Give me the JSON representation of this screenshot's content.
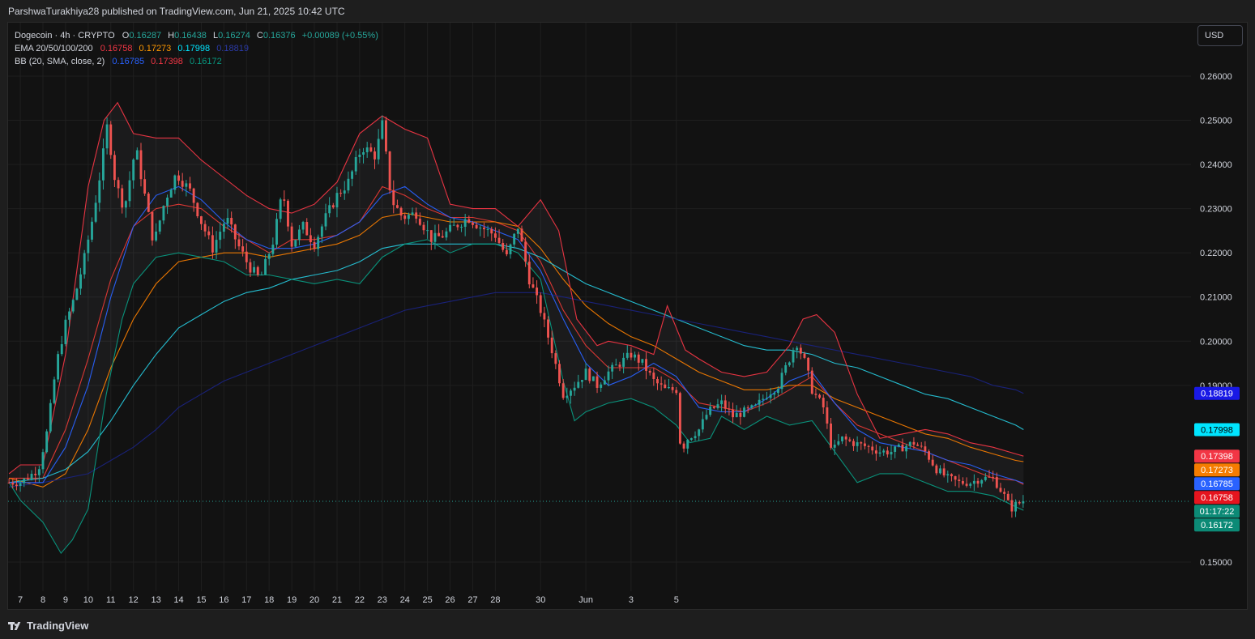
{
  "header": {
    "publish_line": "ParshwaTurakhiya28 published on TradingView.com, Jun 21, 2025 10:42 UTC"
  },
  "footer": {
    "logo_text": "TradingView"
  },
  "toolbar": {
    "currency_button": "USD"
  },
  "legend": {
    "symbol": "Dogecoin · 4h · CRYPTO",
    "ohlc": [
      {
        "key": "O",
        "value": "0.16287"
      },
      {
        "key": "H",
        "value": "0.16438"
      },
      {
        "key": "L",
        "value": "0.16274"
      },
      {
        "key": "C",
        "value": "0.16376"
      }
    ],
    "change": "+0.00089 (+0.55%)",
    "ema_label": "EMA 20/50/100/200",
    "ema_values": [
      "0.16758",
      "0.17273",
      "0.17998",
      "0.18819"
    ],
    "bb_label": "BB (20, SMA, close, 2)",
    "bb_values": [
      "0.16785",
      "0.17398",
      "0.16172"
    ]
  },
  "colors": {
    "background": "#121212",
    "up": "#26a69a",
    "down": "#ef5350",
    "ema20": "#e53935",
    "ema50": "#f57c00",
    "ema100": "#26c6da",
    "ema200": "#1a237e",
    "bb_basis": "#2962ff",
    "bb_upper": "#f23645",
    "bb_lower": "#089981"
  },
  "price_badges": [
    {
      "text": "0.18819",
      "value": 0.18819,
      "color": "#1919e6",
      "text_color": "#ffffff"
    },
    {
      "text": "0.17998",
      "value": 0.17998,
      "color": "#00e5ff",
      "text_color": "#000000"
    },
    {
      "text": "0.17398",
      "value": 0.17398,
      "color": "#f23645",
      "text_color": "#ffffff"
    },
    {
      "text": "0.17273",
      "value": 0.17273,
      "color": "#f57c00",
      "text_color": "#ffffff"
    },
    {
      "text": "0.16785",
      "value": 0.16785,
      "color": "#2962ff",
      "text_color": "#ffffff"
    },
    {
      "text": "0.16758",
      "value": 0.16758,
      "color": "#e6141e",
      "text_color": "#ffffff"
    },
    {
      "text": "01:17:22",
      "value": 0.16376,
      "color": "#0c8a76",
      "text_color": "#ffffff"
    },
    {
      "text": "0.16172",
      "value": 0.16172,
      "color": "#0c8a76",
      "text_color": "#ffffff"
    }
  ],
  "chart_data": {
    "type": "candlestick",
    "symbol": "Dogecoin",
    "interval": "4h",
    "currency": "USD",
    "ylim": [
      0.145,
      0.262
    ],
    "y_ticks": [
      "0.15000",
      "0.19000",
      "0.20000",
      "0.21000",
      "0.22000",
      "0.23000",
      "0.24000",
      "0.25000",
      "0.26000"
    ],
    "x_ticks": [
      "8",
      "10",
      "12",
      "14",
      "16",
      "18",
      "20",
      "22",
      "24",
      "26",
      "28",
      "30",
      "Jun",
      "3",
      "5",
      "7",
      "9",
      "11",
      "13",
      "15",
      "17",
      "19",
      "21",
      "23",
      "25",
      "27"
    ],
    "x_range_days": [
      6.5,
      27.3
    ],
    "grid": true,
    "last_close": 0.16376,
    "price_anchors": [
      {
        "day": 7.0,
        "price": 0.168
      },
      {
        "day": 7.8,
        "price": 0.171
      },
      {
        "day": 8.2,
        "price": 0.18
      },
      {
        "day": 8.6,
        "price": 0.195
      },
      {
        "day": 9.0,
        "price": 0.204
      },
      {
        "day": 9.4,
        "price": 0.21
      },
      {
        "day": 9.8,
        "price": 0.218
      },
      {
        "day": 10.2,
        "price": 0.228
      },
      {
        "day": 10.6,
        "price": 0.24
      },
      {
        "day": 10.85,
        "price": 0.249
      },
      {
        "day": 11.2,
        "price": 0.236
      },
      {
        "day": 11.6,
        "price": 0.23
      },
      {
        "day": 12.1,
        "price": 0.244
      },
      {
        "day": 12.5,
        "price": 0.233
      },
      {
        "day": 12.9,
        "price": 0.222
      },
      {
        "day": 13.4,
        "price": 0.232
      },
      {
        "day": 13.9,
        "price": 0.238
      },
      {
        "day": 14.5,
        "price": 0.234
      },
      {
        "day": 15.0,
        "price": 0.227
      },
      {
        "day": 15.5,
        "price": 0.221
      },
      {
        "day": 16.1,
        "price": 0.228
      },
      {
        "day": 16.6,
        "price": 0.222
      },
      {
        "day": 17.1,
        "price": 0.217
      },
      {
        "day": 17.6,
        "price": 0.214
      },
      {
        "day": 18.2,
        "price": 0.223
      },
      {
        "day": 18.6,
        "price": 0.234
      },
      {
        "day": 19.0,
        "price": 0.222
      },
      {
        "day": 19.5,
        "price": 0.226
      },
      {
        "day": 20.0,
        "price": 0.222
      },
      {
        "day": 20.5,
        "price": 0.228
      },
      {
        "day": 21.0,
        "price": 0.233
      },
      {
        "day": 21.5,
        "price": 0.236
      },
      {
        "day": 22.1,
        "price": 0.244
      },
      {
        "day": 22.7,
        "price": 0.242
      },
      {
        "day": 23.0,
        "price": 0.249
      },
      {
        "day": 23.4,
        "price": 0.232
      },
      {
        "day": 23.9,
        "price": 0.228
      },
      {
        "day": 24.5,
        "price": 0.229
      },
      {
        "day": 25.2,
        "price": 0.223
      },
      {
        "day": 25.7,
        "price": 0.224
      },
      {
        "day": 26.2,
        "price": 0.226
      },
      {
        "day": 26.8,
        "price": 0.228
      },
      {
        "day": 27.3,
        "price": 0.226
      },
      {
        "day": 28.0,
        "price": 0.224
      },
      {
        "day": 28.5,
        "price": 0.219
      },
      {
        "day": 29.0,
        "price": 0.226
      },
      {
        "day": 29.5,
        "price": 0.214
      },
      {
        "day": 30.0,
        "price": 0.207
      },
      {
        "day": 30.5,
        "price": 0.198
      },
      {
        "day": 31.0,
        "price": 0.188
      },
      {
        "day": 31.5,
        "price": 0.19
      },
      {
        "day": 32.0,
        "price": 0.193
      },
      {
        "day": 32.5,
        "price": 0.19
      },
      {
        "day": 33.0,
        "price": 0.193
      },
      {
        "day": 33.5,
        "price": 0.195
      },
      {
        "day": 34.0,
        "price": 0.197
      },
      {
        "day": 34.5,
        "price": 0.195
      },
      {
        "day": 35.0,
        "price": 0.191
      },
      {
        "day": 35.5,
        "price": 0.189
      },
      {
        "day": 36.0,
        "price": 0.189
      },
      {
        "day": 36.2,
        "price": 0.175
      },
      {
        "day": 36.5,
        "price": 0.178
      },
      {
        "day": 37.0,
        "price": 0.18
      },
      {
        "day": 37.4,
        "price": 0.184
      },
      {
        "day": 38.0,
        "price": 0.186
      },
      {
        "day": 38.5,
        "price": 0.183
      },
      {
        "day": 39.0,
        "price": 0.184
      },
      {
        "day": 39.5,
        "price": 0.185
      },
      {
        "day": 40.0,
        "price": 0.188
      },
      {
        "day": 40.5,
        "price": 0.19
      },
      {
        "day": 41.0,
        "price": 0.196
      },
      {
        "day": 41.3,
        "price": 0.2
      },
      {
        "day": 41.7,
        "price": 0.195
      },
      {
        "day": 42.0,
        "price": 0.189
      },
      {
        "day": 42.5,
        "price": 0.185
      },
      {
        "day": 42.9,
        "price": 0.175
      },
      {
        "day": 43.3,
        "price": 0.178
      },
      {
        "day": 43.8,
        "price": 0.177
      },
      {
        "day": 44.5,
        "price": 0.176
      },
      {
        "day": 45.0,
        "price": 0.175
      },
      {
        "day": 45.5,
        "price": 0.175
      },
      {
        "day": 46.0,
        "price": 0.176
      },
      {
        "day": 46.5,
        "price": 0.177
      },
      {
        "day": 47.0,
        "price": 0.175
      },
      {
        "day": 47.5,
        "price": 0.171
      },
      {
        "day": 48.0,
        "price": 0.169
      },
      {
        "day": 48.5,
        "price": 0.168
      },
      {
        "day": 49.0,
        "price": 0.168
      },
      {
        "day": 49.5,
        "price": 0.169
      },
      {
        "day": 50.0,
        "price": 0.169
      },
      {
        "day": 50.5,
        "price": 0.165
      },
      {
        "day": 50.8,
        "price": 0.162
      },
      {
        "day": 51.0,
        "price": 0.163
      },
      {
        "day": 51.35,
        "price": 0.16376
      }
    ],
    "series": [
      {
        "name": "EMA 20",
        "color": "#e53935",
        "x": [
          6.5,
          8,
          9,
          10,
          11,
          12,
          13,
          14,
          15,
          16,
          17,
          18,
          19,
          20,
          21,
          22,
          23,
          24,
          25,
          26,
          27,
          28,
          29,
          30,
          31,
          32,
          33,
          34,
          35,
          36,
          37,
          38,
          39,
          40,
          41,
          42,
          43,
          44,
          45,
          46,
          47,
          48,
          49,
          50,
          51,
          51.35
        ],
        "y": [
          0.169,
          0.169,
          0.18,
          0.196,
          0.214,
          0.226,
          0.23,
          0.231,
          0.23,
          0.226,
          0.223,
          0.22,
          0.223,
          0.223,
          0.224,
          0.227,
          0.235,
          0.233,
          0.23,
          0.228,
          0.228,
          0.227,
          0.225,
          0.218,
          0.207,
          0.199,
          0.194,
          0.194,
          0.194,
          0.191,
          0.186,
          0.185,
          0.184,
          0.186,
          0.189,
          0.192,
          0.186,
          0.181,
          0.179,
          0.177,
          0.175,
          0.173,
          0.171,
          0.169,
          0.1685,
          0.16758
        ]
      },
      {
        "name": "EMA 50",
        "color": "#f57c00",
        "x": [
          6.5,
          8,
          9,
          10,
          11,
          12,
          13,
          14,
          15,
          16,
          17,
          18,
          19,
          20,
          21,
          22,
          23,
          24,
          25,
          26,
          27,
          28,
          29,
          30,
          31,
          32,
          33,
          34,
          35,
          36,
          37,
          38,
          39,
          40,
          41,
          42,
          43,
          44,
          45,
          46,
          47,
          48,
          49,
          50,
          51,
          51.35
        ],
        "y": [
          0.169,
          0.167,
          0.17,
          0.18,
          0.194,
          0.205,
          0.213,
          0.218,
          0.219,
          0.22,
          0.22,
          0.219,
          0.22,
          0.221,
          0.222,
          0.224,
          0.228,
          0.229,
          0.228,
          0.227,
          0.227,
          0.227,
          0.226,
          0.221,
          0.214,
          0.208,
          0.204,
          0.201,
          0.199,
          0.196,
          0.193,
          0.191,
          0.189,
          0.189,
          0.19,
          0.19,
          0.187,
          0.185,
          0.183,
          0.181,
          0.179,
          0.178,
          0.176,
          0.1745,
          0.173,
          0.17273
        ]
      },
      {
        "name": "EMA 100",
        "color": "#26c6da",
        "x": [
          6.5,
          8,
          9,
          10,
          11,
          12,
          13,
          14,
          15,
          16,
          17,
          18,
          19,
          20,
          21,
          22,
          23,
          24,
          25,
          26,
          27,
          28,
          29,
          30,
          31,
          32,
          33,
          34,
          35,
          36,
          37,
          38,
          39,
          40,
          41,
          42,
          43,
          44,
          45,
          46,
          47,
          48,
          49,
          50,
          51,
          51.35
        ],
        "y": [
          0.168,
          0.169,
          0.171,
          0.175,
          0.182,
          0.19,
          0.197,
          0.203,
          0.206,
          0.209,
          0.211,
          0.212,
          0.214,
          0.215,
          0.216,
          0.218,
          0.221,
          0.222,
          0.222,
          0.222,
          0.222,
          0.222,
          0.221,
          0.219,
          0.216,
          0.213,
          0.211,
          0.209,
          0.207,
          0.205,
          0.203,
          0.201,
          0.199,
          0.198,
          0.198,
          0.197,
          0.195,
          0.194,
          0.192,
          0.19,
          0.188,
          0.187,
          0.185,
          0.183,
          0.181,
          0.17998
        ]
      },
      {
        "name": "EMA 200",
        "color": "#1a237e",
        "x": [
          6.5,
          8,
          9,
          10,
          11,
          12,
          13,
          14,
          15,
          16,
          17,
          18,
          19,
          20,
          21,
          22,
          23,
          24,
          25,
          26,
          27,
          28,
          29,
          30,
          31,
          32,
          33,
          34,
          35,
          36,
          37,
          38,
          39,
          40,
          41,
          42,
          43,
          44,
          45,
          46,
          47,
          48,
          49,
          50,
          51,
          51.35
        ],
        "y": [
          0.167,
          0.168,
          0.169,
          0.17,
          0.173,
          0.176,
          0.18,
          0.185,
          0.188,
          0.191,
          0.193,
          0.195,
          0.197,
          0.199,
          0.201,
          0.203,
          0.205,
          0.207,
          0.208,
          0.209,
          0.21,
          0.211,
          0.211,
          0.211,
          0.21,
          0.209,
          0.208,
          0.207,
          0.206,
          0.205,
          0.204,
          0.203,
          0.202,
          0.201,
          0.2,
          0.199,
          0.198,
          0.197,
          0.196,
          0.195,
          0.194,
          0.193,
          0.192,
          0.19,
          0.189,
          0.18819
        ]
      },
      {
        "name": "BB Basis",
        "color": "#2962ff",
        "x": [
          6.5,
          8,
          9,
          10,
          11,
          12,
          13,
          14,
          15,
          16,
          17,
          18,
          19,
          20,
          21,
          22,
          23,
          24,
          25,
          26,
          27,
          28,
          29,
          30,
          31,
          32,
          33,
          34,
          35,
          36,
          37,
          38,
          39,
          40,
          41,
          42,
          43,
          44,
          45,
          46,
          47,
          48,
          49,
          50,
          51,
          51.35
        ],
        "y": [
          0.168,
          0.168,
          0.176,
          0.19,
          0.21,
          0.226,
          0.233,
          0.235,
          0.232,
          0.227,
          0.223,
          0.221,
          0.221,
          0.222,
          0.224,
          0.227,
          0.233,
          0.235,
          0.231,
          0.228,
          0.227,
          0.225,
          0.223,
          0.216,
          0.205,
          0.195,
          0.19,
          0.192,
          0.195,
          0.192,
          0.185,
          0.184,
          0.184,
          0.187,
          0.191,
          0.193,
          0.186,
          0.18,
          0.177,
          0.176,
          0.175,
          0.173,
          0.172,
          0.17,
          0.1685,
          0.16785
        ]
      },
      {
        "name": "BB Upper",
        "color": "#f23645",
        "x": [
          6.5,
          7,
          8,
          9,
          10,
          10.7,
          11.3,
          12,
          13,
          14,
          15,
          16,
          17,
          18,
          19,
          20,
          21,
          22,
          23,
          24,
          25,
          26,
          27,
          28,
          29,
          30,
          30.8,
          31.6,
          32.5,
          33,
          34,
          35,
          35.6,
          36.4,
          37,
          38,
          39,
          40,
          41,
          41.6,
          42.2,
          43,
          44,
          45,
          46,
          47,
          48,
          49,
          50,
          51,
          51.35
        ],
        "y": [
          0.17,
          0.172,
          0.172,
          0.197,
          0.235,
          0.25,
          0.254,
          0.247,
          0.246,
          0.246,
          0.241,
          0.237,
          0.233,
          0.23,
          0.229,
          0.231,
          0.236,
          0.247,
          0.251,
          0.248,
          0.246,
          0.231,
          0.23,
          0.23,
          0.226,
          0.232,
          0.225,
          0.205,
          0.199,
          0.2,
          0.199,
          0.197,
          0.208,
          0.198,
          0.196,
          0.193,
          0.192,
          0.193,
          0.199,
          0.205,
          0.206,
          0.202,
          0.188,
          0.178,
          0.179,
          0.18,
          0.179,
          0.177,
          0.176,
          0.1745,
          0.17398
        ]
      },
      {
        "name": "BB Lower",
        "color": "#089981",
        "x": [
          6.5,
          7,
          8,
          8.8,
          9.3,
          10,
          10.8,
          11.5,
          12,
          13,
          14,
          15,
          16,
          17,
          18,
          19,
          20,
          21,
          22,
          23,
          24,
          25,
          26,
          27,
          28,
          29,
          30,
          31,
          31.5,
          32,
          33,
          34,
          35,
          36,
          36.6,
          37.5,
          38,
          39,
          40,
          41,
          42,
          43,
          44,
          45,
          46,
          47,
          48,
          49,
          50,
          51,
          51.35
        ],
        "y": [
          0.168,
          0.164,
          0.159,
          0.152,
          0.155,
          0.162,
          0.188,
          0.205,
          0.213,
          0.219,
          0.22,
          0.219,
          0.218,
          0.215,
          0.215,
          0.214,
          0.213,
          0.214,
          0.213,
          0.219,
          0.222,
          0.223,
          0.22,
          0.222,
          0.222,
          0.22,
          0.214,
          0.191,
          0.182,
          0.184,
          0.186,
          0.187,
          0.185,
          0.181,
          0.177,
          0.178,
          0.183,
          0.18,
          0.183,
          0.181,
          0.182,
          0.175,
          0.168,
          0.17,
          0.17,
          0.168,
          0.166,
          0.166,
          0.165,
          0.1625,
          0.16172
        ]
      }
    ]
  }
}
